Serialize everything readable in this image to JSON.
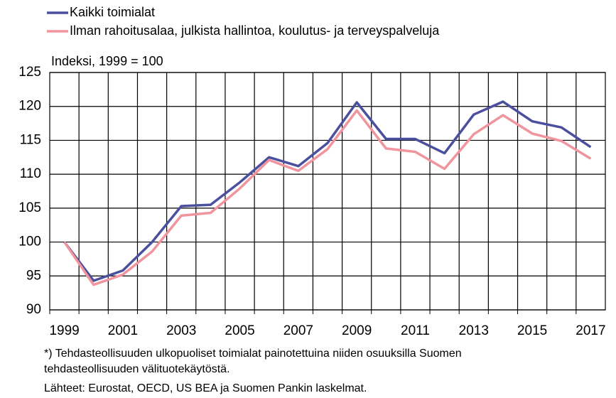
{
  "chart_data": {
    "type": "line",
    "y_axis_label": "Indeksi, 1999 = 100",
    "categories": [
      "1999",
      null,
      "2001",
      null,
      "2003",
      null,
      "2005",
      null,
      "2007",
      null,
      "2009",
      null,
      "2011",
      null,
      "2013",
      null,
      "2015",
      null,
      "2017"
    ],
    "series": [
      {
        "name": "Kaikki toimialat",
        "color": "#4a4f9e",
        "values": [
          100,
          94.3,
          95.8,
          100,
          105.3,
          105.5,
          108.8,
          112.5,
          111.2,
          114.6,
          120.6,
          115.2,
          115.2,
          113.1,
          118.8,
          120.7,
          117.8,
          116.9,
          114.0
        ]
      },
      {
        "name": "Ilman rahoitusalaa, julkista hallintoa, koulutus- ja terveyspalveluja",
        "color": "#f0949e",
        "values": [
          100,
          93.7,
          95.2,
          98.6,
          103.9,
          104.3,
          107.9,
          112.1,
          110.5,
          113.7,
          119.4,
          113.8,
          113.3,
          110.8,
          115.9,
          118.7,
          116.0,
          114.9,
          112.3
        ]
      }
    ],
    "ylim": [
      90,
      125
    ],
    "yticks": [
      90,
      95,
      100,
      105,
      110,
      115,
      120,
      125
    ],
    "grid": true,
    "notes": [
      "*) Tehdasteollisuuden ulkopuoliset toimialat painotettuina niiden osuuksilla Suomen",
      "tehdasteollisuuden välituotekäytöstä."
    ],
    "source": "Lähteet: Eurostat, OECD, US BEA ja Suomen Pankin laskelmat."
  }
}
